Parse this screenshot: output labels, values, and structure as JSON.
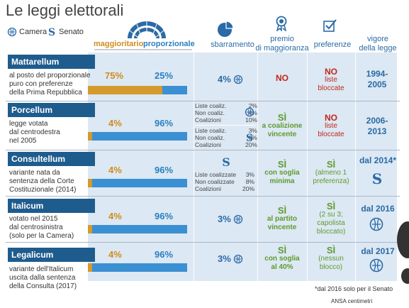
{
  "title": "Le leggi elettorali",
  "legend": {
    "camera": "Camera",
    "senato": "Senato"
  },
  "headers": {
    "maggioritario": "maggioritario",
    "proporzionale": "proporzionale",
    "sbarramento": "sbarramento",
    "premio": [
      "premio",
      "di maggioranza"
    ],
    "preferenze": "preferenze",
    "vigore": [
      "vigore",
      "della legge"
    ]
  },
  "colors": {
    "navy": "#1f5c8e",
    "orange": "#d08c1c",
    "blue": "#2a7fc1",
    "green": "#5f9a2f",
    "red": "#c0281b",
    "band": "#dce8f3"
  },
  "laws": [
    {
      "name": "Mattarellum",
      "desc": [
        "al posto del proporzionale",
        "puro con preferenze",
        "della Prima Repubblica"
      ],
      "magg": "75%",
      "prop": "25%",
      "magg_fraction": 0.75,
      "sbarramento": "4%",
      "premio": [
        "NO"
      ],
      "premio_no": true,
      "pref": [
        "NO",
        "liste",
        "bloccate"
      ],
      "pref_no": true,
      "vigore": [
        "1994-",
        "2005"
      ]
    },
    {
      "name": "Porcellum",
      "desc": [
        "legge votata",
        "dal centrodestra",
        "nel 2005"
      ],
      "magg": "4%",
      "prop": "96%",
      "magg_fraction": 0.04,
      "sb_camera": [
        [
          "Liste coaliz.",
          "2%"
        ],
        [
          "Non coaliz.",
          "4%"
        ],
        [
          "Coalizioni",
          "10%"
        ]
      ],
      "sb_senato": [
        [
          "Liste coaliz.",
          "3%"
        ],
        [
          "Non coaliz.",
          "8%"
        ],
        [
          "Coalizioni",
          "20%"
        ]
      ],
      "premio": [
        "SÌ",
        "a coalizione",
        "vincente"
      ],
      "pref": [
        "NO",
        "liste",
        "bloccate"
      ],
      "pref_no": true,
      "vigore": [
        "2006-",
        "2013"
      ]
    },
    {
      "name": "Consultellum",
      "desc": [
        "variante nata da",
        "sentenza della Corte",
        "Costituzionale (2014)"
      ],
      "magg": "4%",
      "prop": "96%",
      "magg_fraction": 0.04,
      "sb_senato3": [
        [
          "Liste coalizzate",
          "3%"
        ],
        [
          "Non coalizzate",
          "8%"
        ],
        [
          "Coalizioni",
          "20%"
        ]
      ],
      "premio": [
        "SÌ",
        "con soglia",
        "minima"
      ],
      "pref": [
        "SÌ",
        "(almeno 1",
        "preferenza)"
      ],
      "vigore": [
        "dal 2014*"
      ]
    },
    {
      "name": "Italicum",
      "desc": [
        "votato nel 2015",
        "dal centrosinistra",
        "(solo per la Camera)"
      ],
      "magg": "4%",
      "prop": "96%",
      "magg_fraction": 0.04,
      "sbarramento": "3%",
      "premio": [
        "SÌ",
        "al partito",
        "vincente"
      ],
      "pref": [
        "SÌ",
        "(2 su 3;",
        "capolista",
        "bloccato)"
      ],
      "vigore": [
        "dal 2016"
      ]
    },
    {
      "name": "Legalicum",
      "desc": [
        "variante dell'Italicum",
        "uscita dalla sentenza",
        "della Consulta (2017)"
      ],
      "magg": "4%",
      "prop": "96%",
      "magg_fraction": 0.04,
      "sbarramento": "3%",
      "premio": [
        "SÌ",
        "con soglia",
        "al 40%"
      ],
      "pref": [
        "SÌ",
        "(nessun",
        "blocco)"
      ],
      "vigore": [
        "dal 2017"
      ]
    }
  ],
  "footnote": "*dal 2016 solo per il Senato",
  "credits": "ANSA centimetri"
}
